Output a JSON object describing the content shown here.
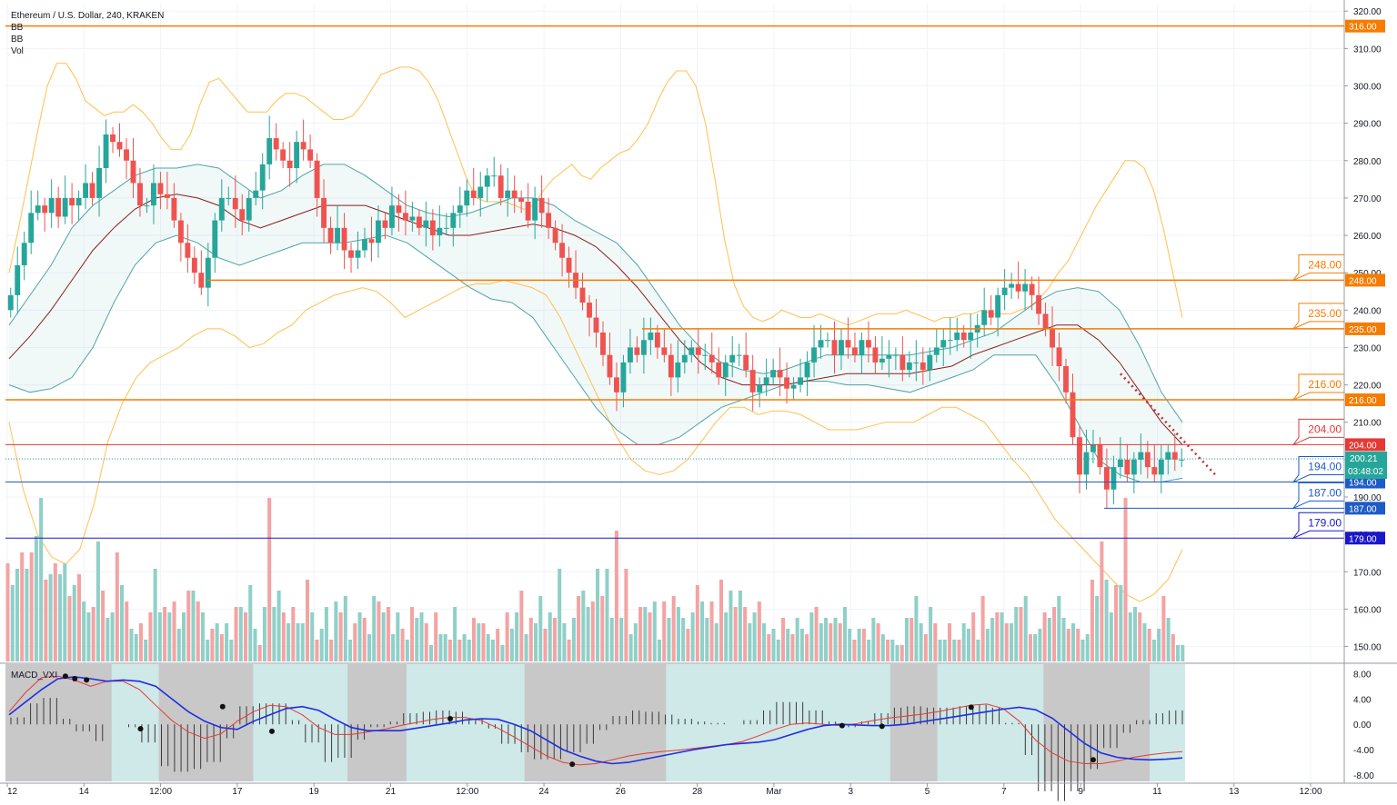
{
  "legend": {
    "title": "Ethereum / U.S. Dollar, 240, KRAKEN",
    "ind1": "BB",
    "ind2": "BB",
    "ind3": "Vol"
  },
  "macd_label": "MACD_VXI",
  "colors": {
    "up": "#26a69a",
    "down": "#ef5350",
    "up_vol": "#8fd0c8",
    "down_vol": "#f4a3a3",
    "orange": "#f57c00",
    "red": "#e53935",
    "blue": "#1e5bc6",
    "navy": "#1a17c9",
    "bb_outer": "#ffc04d",
    "bb_inner": "#4fa3a5",
    "basis": "#8b1e1e",
    "macd_bg": "#cfe8e8",
    "macd_gray": "#c8c8c8"
  },
  "chart_data": {
    "type": "candlestick",
    "symbol": "Ethereum / U.S. Dollar",
    "interval": "240",
    "exchange": "KRAKEN",
    "x_labels": [
      "12",
      "14",
      "12:00",
      "17",
      "19",
      "21",
      "12:00",
      "24",
      "26",
      "28",
      "Mar",
      "3",
      "5",
      "7",
      "9",
      "11",
      "13",
      "12:00"
    ],
    "y_ticks": [
      320,
      310,
      300,
      290,
      280,
      270,
      260,
      250,
      240,
      230,
      220,
      210,
      200,
      190,
      180,
      170,
      160,
      150
    ],
    "ylim": [
      146,
      322
    ],
    "macd_ticks": [
      "8.00",
      "4.00",
      "0.00",
      "-4.00",
      "-8.00"
    ],
    "macd_ylim": [
      -9,
      9.5
    ],
    "current_price": "200.21",
    "countdown": "03:48:02",
    "levels": [
      {
        "value": 316,
        "label": "316.00",
        "color": "orange"
      },
      {
        "value": 248,
        "label": "248.00",
        "color": "orange",
        "callout": "248.00"
      },
      {
        "value": 235,
        "label": "235.00",
        "color": "orange",
        "callout": "235.00"
      },
      {
        "value": 216,
        "label": "216.00",
        "color": "orange",
        "callout": "216.00"
      },
      {
        "value": 204,
        "label": "204.00",
        "color": "red",
        "callout": "204.00"
      },
      {
        "value": 194,
        "label": "194.00",
        "color": "blue",
        "callout": "194.00"
      },
      {
        "value": 187,
        "label": "187.00",
        "color": "blue",
        "callout": "187.00"
      },
      {
        "value": 179,
        "label": "179.00",
        "color": "navy",
        "callout": "179.00"
      }
    ],
    "closes": [
      244,
      252,
      258,
      266,
      268,
      266,
      270,
      265,
      270,
      268,
      270,
      274,
      270,
      278,
      287,
      285,
      283,
      280,
      274,
      268,
      268,
      274,
      271,
      270,
      264,
      258,
      254,
      250,
      246,
      254,
      264,
      270,
      270,
      267,
      264,
      270,
      272,
      279,
      286,
      283,
      280,
      278,
      285,
      283,
      280,
      270,
      262,
      258,
      262,
      256,
      254,
      256,
      259,
      258,
      264,
      262,
      268,
      266,
      264,
      265,
      262,
      264,
      260,
      262,
      262,
      266,
      268,
      272,
      270,
      273,
      276,
      276,
      270,
      272,
      270,
      269,
      264,
      270,
      266,
      262,
      258,
      254,
      250,
      246,
      242,
      238,
      234,
      228,
      222,
      218,
      226,
      230,
      228,
      232,
      234,
      230,
      228,
      222,
      226,
      228,
      230,
      228,
      228,
      226,
      222,
      226,
      228,
      228,
      224,
      218,
      220,
      222,
      224,
      222,
      219,
      220,
      222,
      226,
      230,
      232,
      232,
      228,
      232,
      230,
      228,
      232,
      230,
      226,
      227,
      228,
      228,
      224,
      226,
      226,
      224,
      228,
      230,
      232,
      232,
      234,
      232,
      234,
      236,
      240,
      238,
      244,
      246,
      247,
      245,
      247,
      244,
      239,
      235,
      230,
      225,
      218,
      206,
      196,
      202,
      204,
      198,
      192,
      198,
      200,
      196,
      200,
      202,
      198,
      196,
      200,
      202,
      200,
      200
    ],
    "bb_outer_upper": [
      250,
      262,
      275,
      288,
      300,
      306,
      306,
      302,
      296,
      294,
      292,
      293,
      293,
      295,
      293,
      290,
      286,
      283,
      283,
      287,
      295,
      301,
      302,
      299,
      296,
      293,
      293,
      293,
      296,
      298,
      298,
      297,
      295,
      293,
      291,
      291,
      292,
      295,
      299,
      303,
      304,
      305,
      305,
      304,
      301,
      296,
      289,
      282,
      275,
      270,
      269,
      269,
      269,
      268,
      267,
      268,
      272,
      275,
      277,
      279,
      276,
      275,
      278,
      280,
      282,
      283,
      286,
      290,
      296,
      301,
      304,
      304,
      300,
      290,
      275,
      259,
      247,
      241,
      238,
      237,
      238,
      240,
      239,
      238,
      238,
      239,
      238,
      237,
      236,
      237,
      238,
      239,
      239,
      239,
      240,
      239,
      238,
      237,
      238,
      238,
      239,
      239,
      240,
      239,
      239,
      239,
      240,
      241,
      243,
      246,
      250,
      253,
      258,
      263,
      268,
      272,
      276,
      280,
      280,
      278,
      272,
      262,
      250,
      238
    ],
    "bb_outer_lower": [
      210,
      192,
      180,
      174,
      172,
      176,
      188,
      205,
      215,
      222,
      226,
      228,
      230,
      233,
      235,
      235,
      233,
      230,
      231,
      234,
      236,
      240,
      242,
      244,
      245,
      246,
      245,
      242,
      238,
      240,
      242,
      244,
      246,
      247,
      247,
      248,
      247,
      246,
      244,
      238,
      230,
      222,
      214,
      206,
      200,
      197,
      196,
      197,
      200,
      205,
      210,
      214,
      214,
      212,
      213,
      213,
      212,
      210,
      208,
      208,
      208,
      209,
      210,
      210,
      210,
      212,
      214,
      214,
      212,
      210,
      205,
      200,
      196,
      190,
      184,
      180,
      176,
      172,
      168,
      164,
      162,
      164,
      168,
      176
    ],
    "bb_inner_upper": [
      236,
      244,
      252,
      262,
      268,
      272,
      276,
      278,
      278,
      279,
      278,
      274,
      270,
      272,
      276,
      279,
      279,
      276,
      272,
      268,
      266,
      265,
      266,
      268,
      270,
      270,
      268,
      264,
      261,
      258,
      252,
      244,
      236,
      230,
      226,
      224,
      223,
      224,
      226,
      228,
      228,
      228,
      228,
      228,
      229,
      230,
      232,
      234,
      238,
      242,
      245,
      246,
      245,
      240,
      230,
      218,
      210
    ],
    "bb_inner_lower": [
      220,
      218,
      219,
      222,
      230,
      242,
      252,
      258,
      260,
      258,
      254,
      252,
      254,
      256,
      258,
      258,
      258,
      259,
      260,
      258,
      254,
      250,
      246,
      243,
      242,
      238,
      230,
      222,
      214,
      208,
      204,
      204,
      206,
      210,
      214,
      216,
      218,
      220,
      221,
      221,
      220,
      220,
      219,
      218,
      220,
      222,
      224,
      228,
      228,
      228,
      220,
      210,
      200,
      196,
      194,
      194,
      195
    ],
    "bb_basis": [
      227,
      233,
      240,
      248,
      256,
      262,
      267,
      270,
      271,
      270,
      268,
      264,
      262,
      264,
      266,
      268,
      268,
      268,
      266,
      264,
      262,
      260,
      260,
      261,
      262,
      263,
      262,
      260,
      257,
      252,
      246,
      239,
      232,
      226,
      222,
      220,
      220,
      220,
      221,
      222,
      223,
      223,
      223,
      223,
      224,
      225,
      228,
      230,
      232,
      234,
      236,
      236,
      232,
      226,
      218,
      210,
      204
    ],
    "volumes": [
      18,
      14,
      17,
      20,
      17,
      20,
      23,
      30,
      15,
      16,
      18,
      16,
      18,
      12,
      14,
      16,
      11,
      9,
      10,
      22,
      13,
      8,
      9,
      20,
      14,
      11,
      6,
      5,
      7,
      4,
      9,
      17,
      9,
      10,
      9,
      11,
      6,
      9,
      13,
      13,
      11,
      9,
      4,
      6,
      7,
      5,
      7,
      4,
      10,
      10,
      9,
      14,
      6,
      3,
      10,
      30,
      10,
      13,
      9,
      7,
      10,
      7,
      7,
      15,
      9,
      4,
      6,
      10,
      4,
      11,
      9,
      12,
      4,
      7,
      9,
      8,
      5,
      12,
      11,
      9,
      10,
      5,
      9,
      6,
      4,
      10,
      8,
      9,
      7,
      3,
      9,
      5,
      5,
      4,
      10,
      4,
      5,
      4,
      8,
      7,
      7,
      5,
      4,
      6,
      3,
      9,
      6,
      9,
      13,
      5,
      8,
      7,
      12,
      6,
      9,
      8,
      17,
      7,
      4,
      8,
      12,
      13,
      10,
      11,
      17,
      12,
      17,
      8,
      24,
      8,
      17,
      5,
      7,
      10,
      10,
      9,
      11,
      4,
      11,
      8,
      12,
      10,
      8,
      6,
      9,
      14,
      11,
      8,
      11,
      7,
      15,
      9,
      13,
      10,
      13,
      10,
      7,
      9,
      11,
      7,
      5,
      6,
      4,
      8,
      6,
      5,
      8,
      6,
      5,
      9,
      10,
      7,
      8,
      7,
      8,
      7,
      10,
      6,
      4,
      6,
      6,
      4,
      8,
      7,
      5,
      4,
      4,
      3,
      3,
      8,
      8,
      12,
      7,
      5,
      10,
      7,
      4,
      4,
      7,
      4,
      4,
      7,
      6,
      9,
      4,
      12,
      6,
      8,
      9,
      9,
      7,
      7,
      10,
      10,
      12,
      5,
      5,
      6,
      9,
      8,
      10,
      12,
      8,
      6,
      7,
      6,
      4,
      5,
      15,
      12,
      22,
      15,
      9,
      14,
      14,
      30,
      9,
      10,
      9,
      7,
      6,
      4,
      6,
      12,
      8,
      5,
      3,
      3
    ],
    "macd_signal": [
      1.5,
      3.5,
      5.5,
      7.2,
      7.5,
      7.2,
      6.8,
      7.0,
      6.8,
      6.0,
      4.0,
      2.0,
      0.5,
      -0.5,
      -0.8,
      0.5,
      1.5,
      2.5,
      2.8,
      2.2,
      0.8,
      -0.5,
      -1.0,
      -1.0,
      -1.0,
      -0.6,
      -0.2,
      0.2,
      0.7,
      0.9,
      0.8,
      0.0,
      -1.0,
      -2.5,
      -4.0,
      -5.0,
      -5.8,
      -6.2,
      -6.0,
      -5.5,
      -5.0,
      -4.5,
      -4.0,
      -3.6,
      -3.2,
      -3.0,
      -2.8,
      -2.4,
      -1.6,
      -0.8,
      -0.2,
      0.0,
      -0.1,
      -0.2,
      -0.2,
      0.0,
      0.4,
      0.8,
      1.2,
      1.6,
      2.0,
      2.4,
      2.7,
      2.3,
      1.0,
      -1.0,
      -3.0,
      -4.5,
      -5.2,
      -5.5,
      -5.6,
      -5.5,
      -5.3
    ],
    "macd_line": [
      2.0,
      5.0,
      7.4,
      7.6,
      7.0,
      6.0,
      6.8,
      6.8,
      5.5,
      3.0,
      0.6,
      -1.2,
      -2.2,
      -1.5,
      0.5,
      2.0,
      3.0,
      2.8,
      1.5,
      -0.5,
      -1.6,
      -1.6,
      -1.2,
      -0.8,
      -0.2,
      0.3,
      0.8,
      1.1,
      1.1,
      0.6,
      -0.6,
      -2.0,
      -3.5,
      -5.0,
      -6.0,
      -6.4,
      -6.2,
      -5.6,
      -5.0,
      -4.6,
      -4.3,
      -4.1,
      -3.8,
      -3.5,
      -3.2,
      -2.7,
      -1.8,
      -0.8,
      0.0,
      0.2,
      0.0,
      -0.2,
      0.1,
      0.6,
      1.0,
      1.3,
      1.6,
      2.0,
      2.5,
      3.0,
      3.2,
      2.5,
      0.5,
      -2.5,
      -4.5,
      -5.8,
      -6.2,
      -6.2,
      -5.8,
      -5.2,
      -4.8,
      -4.5,
      -4.3
    ],
    "macd_dots": [
      [
        0.24,
        7.6
      ],
      [
        0.28,
        7.2
      ],
      [
        0.33,
        7.0
      ],
      [
        0.56,
        -0.7
      ],
      [
        0.91,
        2.8
      ],
      [
        1.12,
        -1.1
      ],
      [
        1.88,
        0.9
      ],
      [
        2.4,
        -6.3
      ],
      [
        3.55,
        -0.2
      ],
      [
        3.72,
        -0.3
      ],
      [
        4.1,
        2.7
      ],
      [
        4.62,
        -5.6
      ]
    ],
    "macd_gray_regions": [
      [
        0.0,
        0.09
      ],
      [
        0.13,
        0.21
      ],
      [
        0.29,
        0.34
      ],
      [
        0.44,
        0.56
      ],
      [
        0.75,
        0.79
      ],
      [
        0.88,
        0.97
      ]
    ]
  }
}
